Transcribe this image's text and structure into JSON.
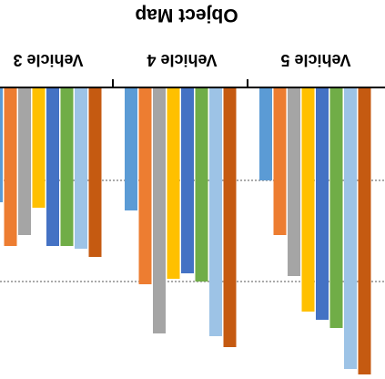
{
  "chart_data": {
    "type": "bar",
    "orientation": "vertical",
    "value_axis": "inverted (bars hang down from top axis)",
    "title": "Object Map",
    "categories": [
      "Vehicle 3",
      "Vehicle 4",
      "Vehicle 5"
    ],
    "text_orientation": "upside-down",
    "grid": "dotted horizontal lines",
    "gridline_values": [
      0.34,
      0.71
    ],
    "ylim": [
      0,
      1.05
    ],
    "series": [
      {
        "color": "#5B9BD5",
        "values": [
          0.42,
          0.45,
          0.34
        ]
      },
      {
        "color": "#ED7D31",
        "values": [
          0.58,
          0.72,
          0.54
        ]
      },
      {
        "color": "#A5A5A5",
        "values": [
          0.54,
          0.9,
          0.69
        ]
      },
      {
        "color": "#FFC000",
        "values": [
          0.44,
          0.7,
          0.82
        ]
      },
      {
        "color": "#4472C4",
        "values": [
          0.58,
          0.68,
          0.85
        ]
      },
      {
        "color": "#70AD47",
        "values": [
          0.58,
          0.71,
          0.88
        ]
      },
      {
        "color": "#9DC3E6",
        "values": [
          0.59,
          0.91,
          1.03
        ]
      },
      {
        "color": "#C55A11",
        "values": [
          0.62,
          0.95,
          1.05
        ]
      }
    ]
  }
}
